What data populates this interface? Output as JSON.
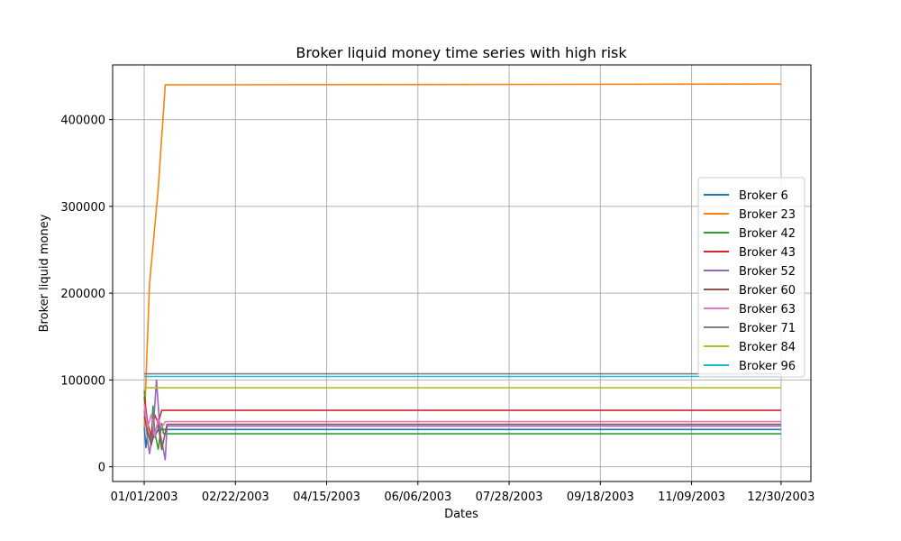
{
  "chart_data": {
    "type": "line",
    "title": "Broker liquid money time series with high risk",
    "xlabel": "Dates",
    "ylabel": "Broker liquid money",
    "grid": true,
    "legend_position": "right",
    "x_ticks": [
      "01/01/2003",
      "02/22/2003",
      "04/15/2003",
      "06/06/2003",
      "07/28/2003",
      "09/18/2003",
      "11/09/2003",
      "12/30/2003"
    ],
    "y_ticks": [
      0,
      100000,
      200000,
      300000,
      400000
    ],
    "xlim": [
      "12/14/2002",
      "01/16/2004"
    ],
    "ylim": [
      -17000,
      463000
    ],
    "series": [
      {
        "name": "Broker 6",
        "color": "#1f77b4",
        "points": [
          {
            "x": "01/01/2003",
            "y": 45000
          },
          {
            "x": "01/02/2003",
            "y": 22000
          },
          {
            "x": "01/03/2003",
            "y": 40000
          },
          {
            "x": "01/05/2003",
            "y": 30000
          },
          {
            "x": "01/07/2003",
            "y": 35000
          },
          {
            "x": "01/09/2003",
            "y": 43000
          },
          {
            "x": "12/30/2003",
            "y": 43000
          }
        ]
      },
      {
        "name": "Broker 23",
        "color": "#ff7f0e",
        "points": [
          {
            "x": "01/01/2003",
            "y": 45000
          },
          {
            "x": "01/04/2003",
            "y": 210000
          },
          {
            "x": "01/09/2003",
            "y": 320000
          },
          {
            "x": "01/13/2003",
            "y": 440000
          },
          {
            "x": "12/30/2003",
            "y": 441000
          }
        ]
      },
      {
        "name": "Broker 42",
        "color": "#2ca02c",
        "points": [
          {
            "x": "01/01/2003",
            "y": 88000
          },
          {
            "x": "01/03/2003",
            "y": 40000
          },
          {
            "x": "01/05/2003",
            "y": 30000
          },
          {
            "x": "01/06/2003",
            "y": 70000
          },
          {
            "x": "01/07/2003",
            "y": 40000
          },
          {
            "x": "01/09/2003",
            "y": 20000
          },
          {
            "x": "01/11/2003",
            "y": 50000
          },
          {
            "x": "01/12/2003",
            "y": 38000
          },
          {
            "x": "12/30/2003",
            "y": 38000
          }
        ]
      },
      {
        "name": "Broker 43",
        "color": "#d62728",
        "points": [
          {
            "x": "01/01/2003",
            "y": 80000
          },
          {
            "x": "01/03/2003",
            "y": 50000
          },
          {
            "x": "01/05/2003",
            "y": 35000
          },
          {
            "x": "01/07/2003",
            "y": 60000
          },
          {
            "x": "01/09/2003",
            "y": 50000
          },
          {
            "x": "01/11/2003",
            "y": 65000
          },
          {
            "x": "12/30/2003",
            "y": 65000
          }
        ]
      },
      {
        "name": "Broker 52",
        "color": "#9467bd",
        "points": [
          {
            "x": "01/01/2003",
            "y": 65000
          },
          {
            "x": "01/03/2003",
            "y": 30000
          },
          {
            "x": "01/04/2003",
            "y": 15000
          },
          {
            "x": "01/06/2003",
            "y": 40000
          },
          {
            "x": "01/08/2003",
            "y": 100000
          },
          {
            "x": "01/10/2003",
            "y": 40000
          },
          {
            "x": "01/13/2003",
            "y": 8000
          },
          {
            "x": "01/14/2003",
            "y": 47000
          },
          {
            "x": "12/30/2003",
            "y": 47000
          }
        ]
      },
      {
        "name": "Broker 60",
        "color": "#8c564b",
        "points": [
          {
            "x": "01/01/2003",
            "y": 58000
          },
          {
            "x": "01/03/2003",
            "y": 40000
          },
          {
            "x": "01/05/2003",
            "y": 25000
          },
          {
            "x": "01/07/2003",
            "y": 40000
          },
          {
            "x": "01/09/2003",
            "y": 48000
          },
          {
            "x": "01/11/2003",
            "y": 20000
          },
          {
            "x": "01/14/2003",
            "y": 49000
          },
          {
            "x": "12/30/2003",
            "y": 49000
          }
        ]
      },
      {
        "name": "Broker 63",
        "color": "#e377c2",
        "points": [
          {
            "x": "01/01/2003",
            "y": 72000
          },
          {
            "x": "01/03/2003",
            "y": 45000
          },
          {
            "x": "01/05/2003",
            "y": 60000
          },
          {
            "x": "01/07/2003",
            "y": 35000
          },
          {
            "x": "01/09/2003",
            "y": 55000
          },
          {
            "x": "01/11/2003",
            "y": 45000
          },
          {
            "x": "01/13/2003",
            "y": 52000
          },
          {
            "x": "12/30/2003",
            "y": 52000
          }
        ]
      },
      {
        "name": "Broker 71",
        "color": "#7f7f7f",
        "points": [
          {
            "x": "01/01/2003",
            "y": 107000
          },
          {
            "x": "12/30/2003",
            "y": 107000
          }
        ]
      },
      {
        "name": "Broker 84",
        "color": "#bcbd22",
        "points": [
          {
            "x": "01/01/2003",
            "y": 91000
          },
          {
            "x": "12/30/2003",
            "y": 91000
          }
        ]
      },
      {
        "name": "Broker 96",
        "color": "#17becf",
        "points": [
          {
            "x": "01/01/2003",
            "y": 104000
          },
          {
            "x": "12/30/2003",
            "y": 104000
          }
        ]
      }
    ]
  }
}
